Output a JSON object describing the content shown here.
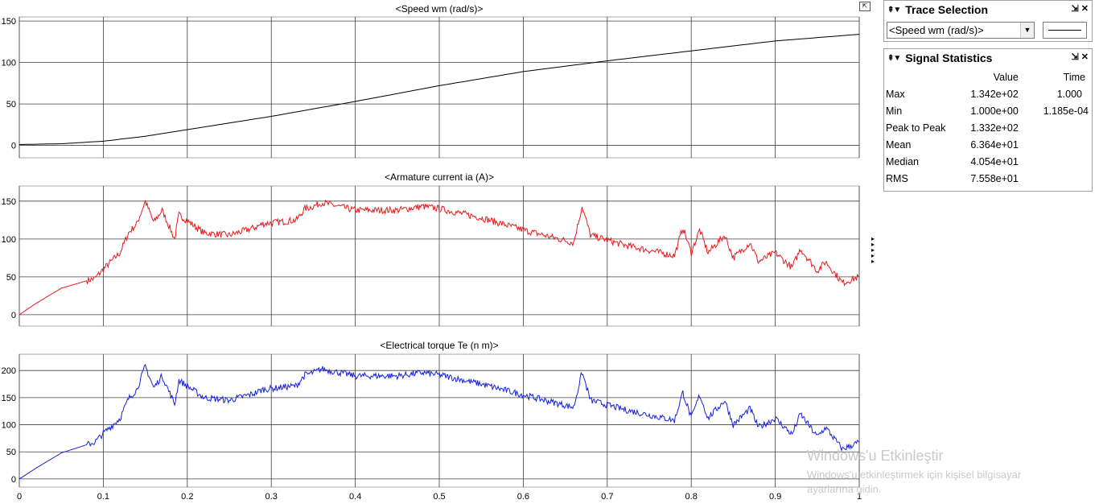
{
  "plots": [
    {
      "title": "<Speed wm (rad/s)>",
      "color": "#000000",
      "yticks": [
        0,
        50,
        100,
        150
      ],
      "ylim": [
        -15,
        155
      ]
    },
    {
      "title": "<Armature current ia (A)>",
      "color": "#e8191c",
      "yticks": [
        0,
        50,
        100,
        150
      ],
      "ylim": [
        -15,
        170
      ]
    },
    {
      "title": "<Electrical torque Te (n m)>",
      "color": "#1520e0",
      "yticks": [
        0,
        50,
        100,
        150,
        200
      ],
      "ylim": [
        -15,
        230
      ]
    }
  ],
  "xaxis": {
    "ticks": [
      "0",
      "0.1",
      "0.2",
      "0.3",
      "0.4",
      "0.5",
      "0.6",
      "0.7",
      "0.8",
      "0.9",
      "1"
    ],
    "xlim": [
      0,
      1
    ]
  },
  "chart_data": [
    {
      "type": "line",
      "title": "<Speed wm (rad/s)>",
      "xlim": [
        0,
        1
      ],
      "ylim": [
        -15,
        155
      ],
      "series": [
        {
          "x": [
            0,
            0.05,
            0.1,
            0.15,
            0.2,
            0.3,
            0.4,
            0.5,
            0.6,
            0.7,
            0.8,
            0.9,
            1.0
          ],
          "values": [
            1,
            2,
            5,
            11,
            19,
            35,
            53,
            72,
            89,
            102,
            114,
            126,
            134
          ]
        }
      ]
    },
    {
      "type": "line",
      "title": "<Armature current ia (A)>",
      "xlim": [
        0,
        1
      ],
      "ylim": [
        -15,
        170
      ],
      "series": [
        {
          "x": [
            0,
            0.02,
            0.05,
            0.09,
            0.1,
            0.12,
            0.13,
            0.14,
            0.15,
            0.16,
            0.17,
            0.185,
            0.19,
            0.22,
            0.25,
            0.28,
            0.29,
            0.33,
            0.34,
            0.35,
            0.36,
            0.4,
            0.45,
            0.48,
            0.5,
            0.55,
            0.6,
            0.66,
            0.67,
            0.68,
            0.72,
            0.78,
            0.79,
            0.8,
            0.81,
            0.82,
            0.84,
            0.85,
            0.87,
            0.88,
            0.9,
            0.92,
            0.93,
            0.95,
            0.96,
            0.98,
            1.0
          ],
          "values": [
            0,
            15,
            35,
            48,
            60,
            82,
            108,
            120,
            150,
            122,
            138,
            100,
            132,
            108,
            105,
            115,
            120,
            125,
            140,
            143,
            148,
            138,
            138,
            143,
            140,
            128,
            112,
            95,
            143,
            105,
            92,
            78,
            115,
            82,
            112,
            82,
            105,
            75,
            95,
            70,
            82,
            62,
            87,
            58,
            70,
            42,
            50
          ]
        }
      ]
    },
    {
      "type": "line",
      "title": "<Electrical torque Te (n m)>",
      "xlim": [
        0,
        1
      ],
      "ylim": [
        -15,
        230
      ],
      "series": [
        {
          "x": [
            0,
            0.02,
            0.05,
            0.09,
            0.1,
            0.12,
            0.13,
            0.14,
            0.15,
            0.16,
            0.17,
            0.185,
            0.19,
            0.22,
            0.25,
            0.28,
            0.29,
            0.33,
            0.34,
            0.35,
            0.36,
            0.4,
            0.45,
            0.48,
            0.5,
            0.55,
            0.6,
            0.66,
            0.67,
            0.68,
            0.72,
            0.78,
            0.79,
            0.8,
            0.81,
            0.82,
            0.84,
            0.85,
            0.87,
            0.88,
            0.9,
            0.92,
            0.93,
            0.95,
            0.96,
            0.98,
            1.0
          ],
          "values": [
            0,
            20,
            48,
            68,
            84,
            112,
            148,
            165,
            208,
            168,
            190,
            138,
            182,
            150,
            145,
            158,
            165,
            172,
            192,
            196,
            203,
            190,
            190,
            196,
            192,
            175,
            155,
            132,
            197,
            145,
            128,
            108,
            160,
            112,
            155,
            112,
            145,
            100,
            130,
            95,
            112,
            82,
            120,
            78,
            95,
            55,
            68
          ]
        }
      ]
    }
  ],
  "trace_selection": {
    "title": "Trace Selection",
    "selected": "<Speed wm (rad/s)>"
  },
  "signal_statistics": {
    "title": "Signal Statistics",
    "headers": [
      "Value",
      "Time"
    ],
    "rows": [
      {
        "label": "Max",
        "value": "1.342e+02",
        "time": "1.000"
      },
      {
        "label": "Min",
        "value": "1.000e+00",
        "time": "1.185e-04"
      },
      {
        "label": "Peak to Peak",
        "value": "1.332e+02",
        "time": ""
      },
      {
        "label": "Mean",
        "value": "6.364e+01",
        "time": ""
      },
      {
        "label": "Median",
        "value": "4.054e+01",
        "time": ""
      },
      {
        "label": "RMS",
        "value": "7.558e+01",
        "time": ""
      }
    ]
  },
  "watermark": {
    "title": "Windows'u Etkinleştir",
    "line1": "Windows'u etkinleştirmek için kişisel bilgisayar",
    "line2": "ayarlarına gidin."
  }
}
